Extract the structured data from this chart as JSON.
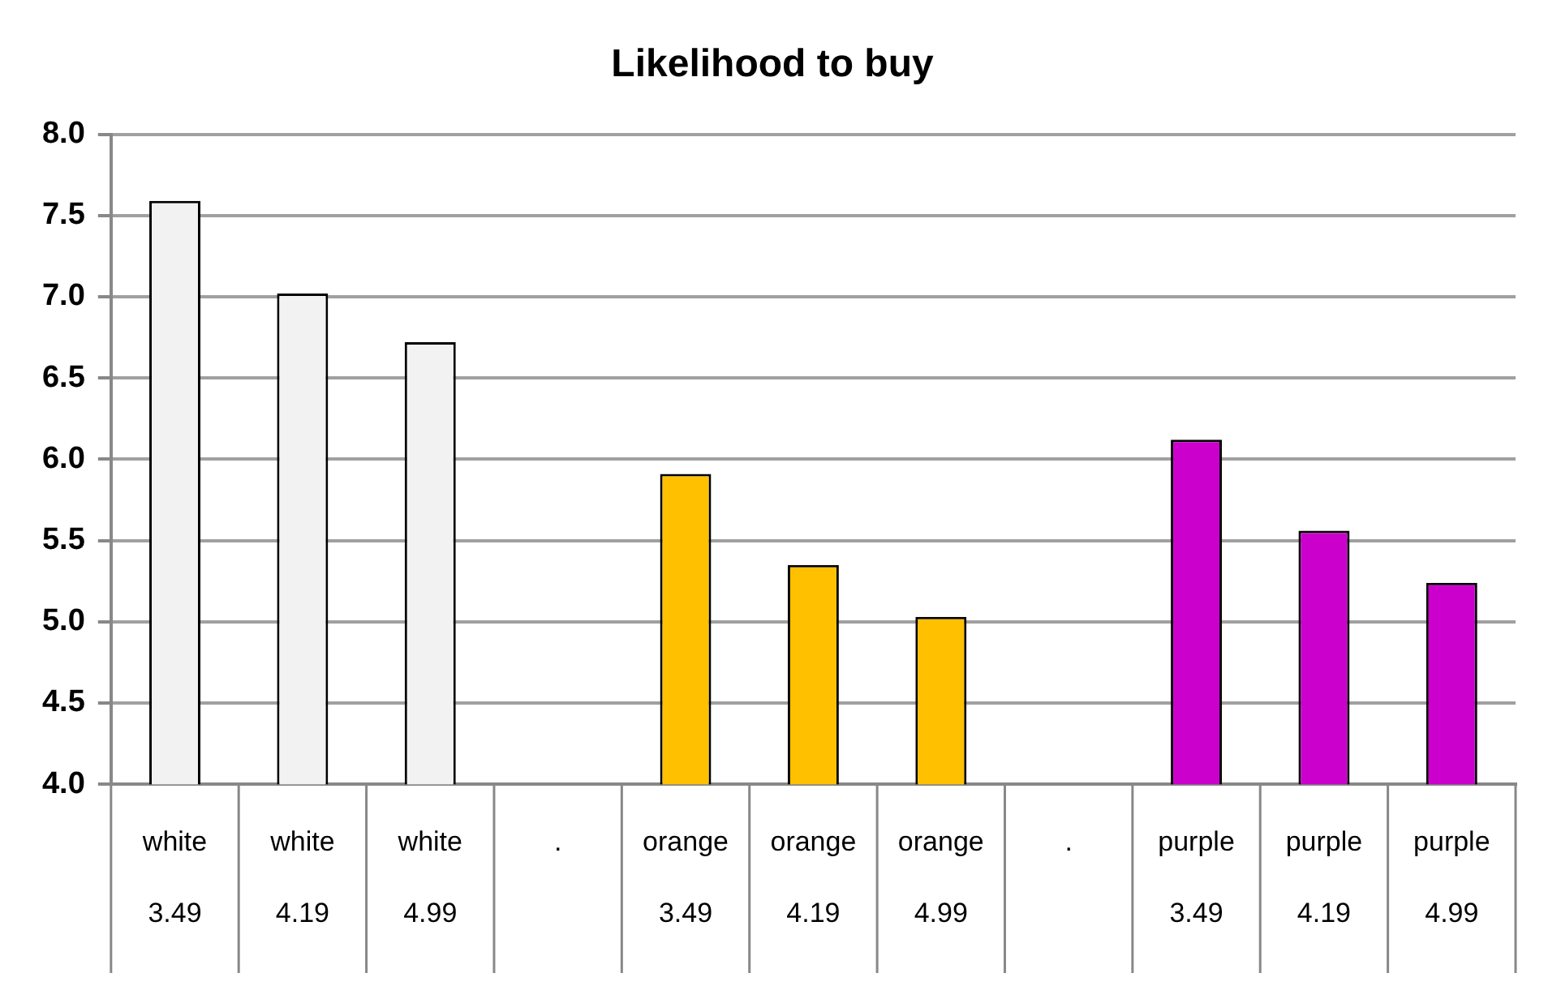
{
  "chart_data": {
    "type": "bar",
    "title": "Likelihood to buy",
    "categories": [
      "white\n3.49",
      "white\n4.19",
      "white\n4.99",
      ".",
      "orange\n3.49",
      "orange\n4.19",
      "orange\n4.99",
      ".",
      "purple\n3.49",
      "purple\n4.19",
      "purple\n4.99"
    ],
    "values": [
      7.59,
      7.02,
      6.72,
      null,
      5.91,
      5.35,
      5.03,
      null,
      6.12,
      5.56,
      5.24
    ],
    "colors": [
      "#f2f2f2",
      "#f2f2f2",
      "#f2f2f2",
      "#ffffff",
      "#ffc000",
      "#ffc000",
      "#ffc000",
      "#ffffff",
      "#cc00cc",
      "#cc00cc",
      "#cc00cc"
    ],
    "ylim": [
      4.0,
      8.0
    ],
    "yticks": [
      {
        "value": 4,
        "label": "4.0"
      },
      {
        "value": 4.5,
        "label": "4.5"
      },
      {
        "value": 5,
        "label": "5.0"
      },
      {
        "value": 5.5,
        "label": "5.5"
      },
      {
        "value": 6,
        "label": "6.0"
      },
      {
        "value": 6.5,
        "label": "6.5"
      },
      {
        "value": 7,
        "label": "7.0"
      },
      {
        "value": 7.5,
        "label": "7.5"
      },
      {
        "value": 8,
        "label": "8.0"
      }
    ],
    "grid": "y",
    "legend": false
  }
}
